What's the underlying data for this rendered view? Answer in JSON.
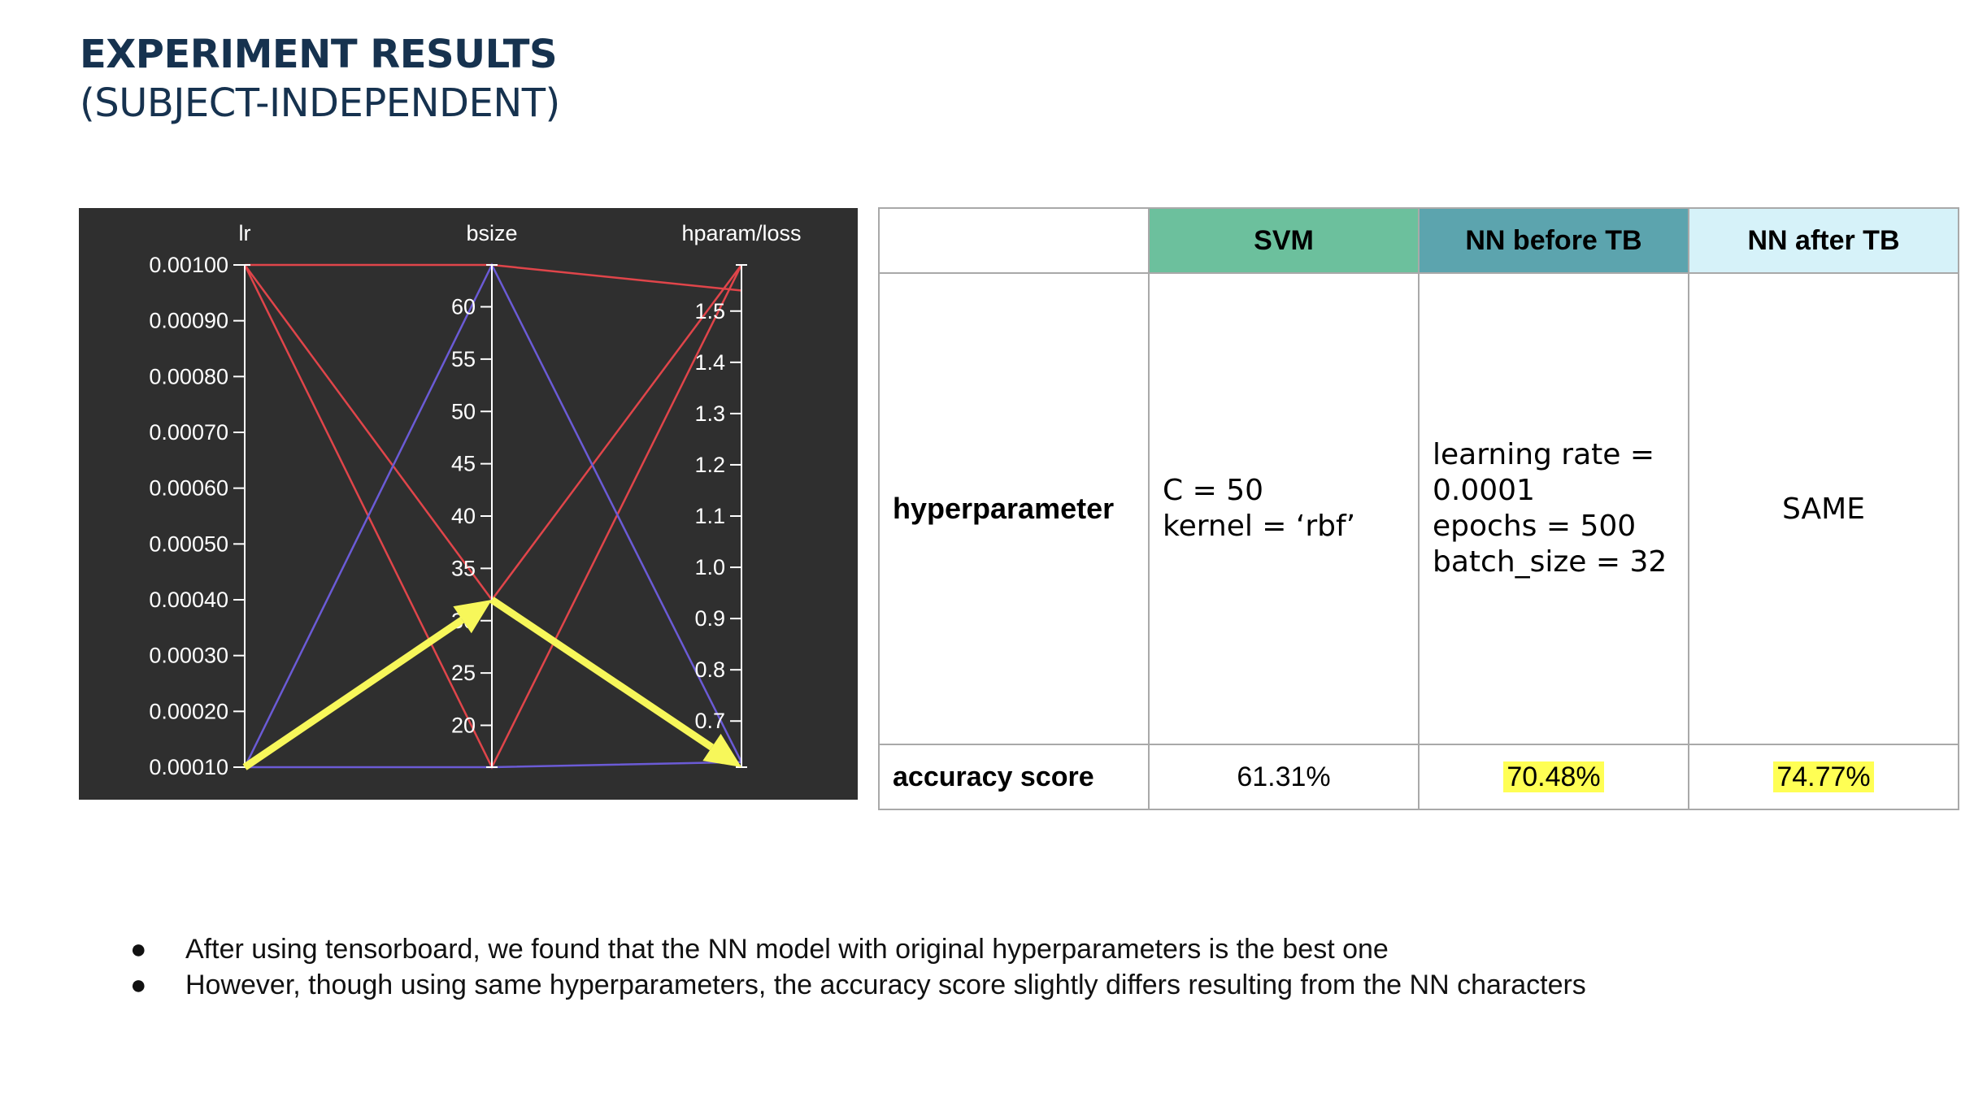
{
  "slide": {
    "title": "EXPERIMENT RESULTS",
    "subtitle": "(SUBJECT-INDEPENDENT)"
  },
  "colors": {
    "title": "#16324f",
    "chart_bg": "#2f2f2f",
    "red_series": "#e0454a",
    "blue_series": "#6b5bd6",
    "arrow": "#f7f75a",
    "svm_header": "#6cc09d",
    "nn_before_header": "#5ca4ae",
    "nn_after_header": "#d6f2f9",
    "highlight": "#ffff54"
  },
  "chart_data": {
    "type": "parallel_coordinates",
    "axes": [
      {
        "name": "lr",
        "range": [
          0.0001,
          0.001
        ],
        "ticks": [
          "0.00010",
          "0.00020",
          "0.00030",
          "0.00040",
          "0.00050",
          "0.00060",
          "0.00070",
          "0.00080",
          "0.00090",
          "0.00100"
        ]
      },
      {
        "name": "bsize",
        "range": [
          16,
          64
        ],
        "ticks": [
          "20",
          "25",
          "30",
          "35",
          "40",
          "45",
          "50",
          "55",
          "60"
        ]
      },
      {
        "name": "hparam/loss",
        "range": [
          0.61,
          1.59
        ],
        "ticks": [
          "0.7",
          "0.8",
          "0.9",
          "1.0",
          "1.1",
          "1.2",
          "1.3",
          "1.4",
          "1.5"
        ]
      }
    ],
    "lines": [
      {
        "lr": 0.001,
        "bsize": 64,
        "loss": 1.54,
        "color": "red"
      },
      {
        "lr": 0.001,
        "bsize": 32,
        "loss": 1.59,
        "color": "red"
      },
      {
        "lr": 0.001,
        "bsize": 16,
        "loss": 1.59,
        "color": "red"
      },
      {
        "lr": 0.0001,
        "bsize": 64,
        "loss": 0.62,
        "color": "blue"
      },
      {
        "lr": 0.0001,
        "bsize": 16,
        "loss": 0.62,
        "color": "blue"
      },
      {
        "lr": 0.0001,
        "bsize": 32,
        "loss": 0.61,
        "color": "blue"
      }
    ],
    "highlight_path": {
      "lr": 0.0001,
      "bsize": 32,
      "loss": 0.61
    }
  },
  "table": {
    "headers": [
      "",
      "SVM",
      "NN before TB",
      "NN after TB"
    ],
    "hyperparameter": {
      "label": "hyperparameter",
      "svm": [
        "C = 50",
        "kernel = ‘rbf’"
      ],
      "nn_before": [
        "learning rate =",
        "0.0001",
        "epochs = 500",
        "batch_size = 32"
      ],
      "nn_after": "SAME"
    },
    "accuracy": {
      "label": "accuracy score",
      "svm": "61.31%",
      "nn_before": "70.48%",
      "nn_after": "74.77%"
    }
  },
  "bullets": [
    "After using tensorboard, we found that the NN model with original hyperparameters is the best one",
    "However, though using same hyperparameters, the accuracy score slightly differs resulting from the NN characters"
  ]
}
